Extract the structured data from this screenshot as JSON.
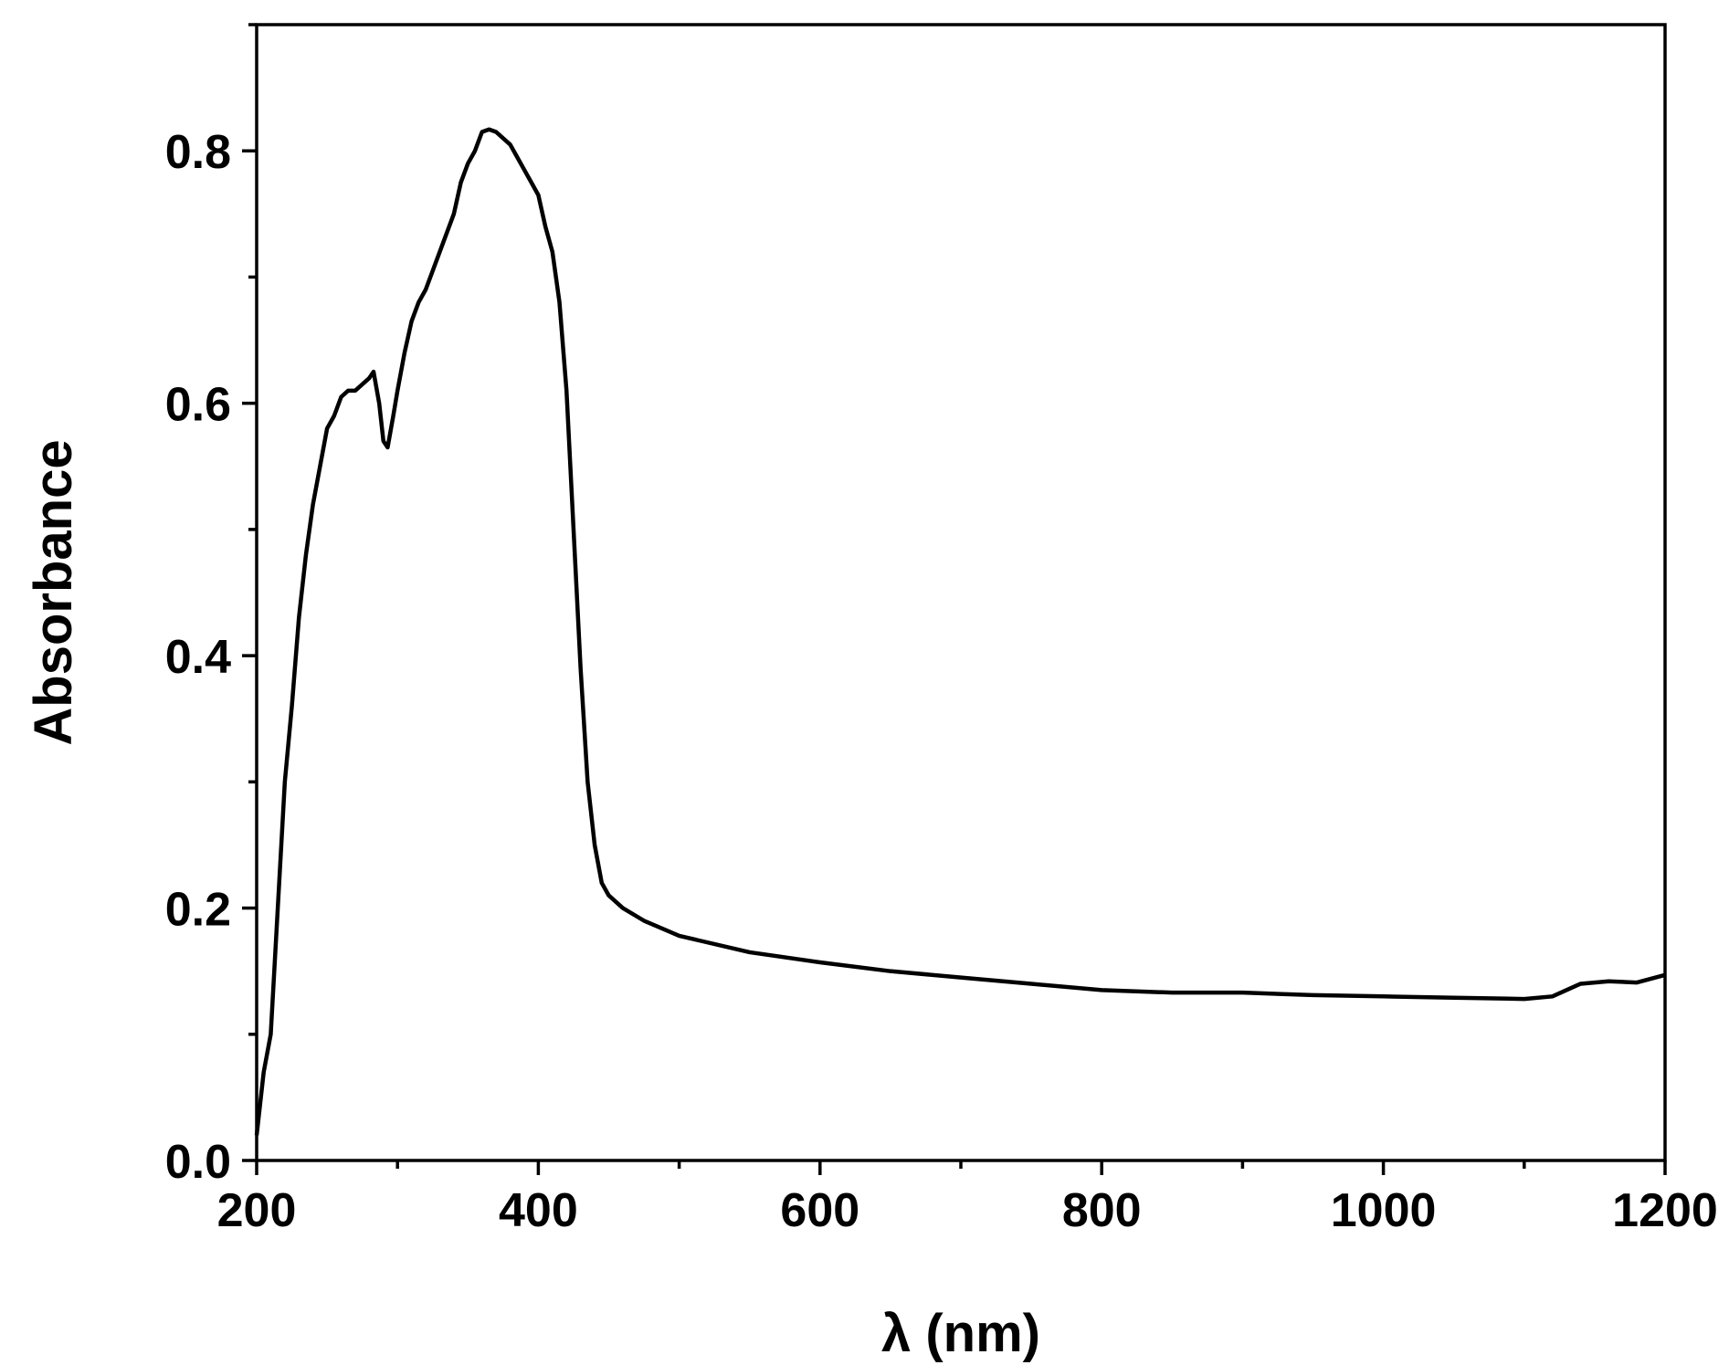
{
  "chart_data": {
    "type": "line",
    "xlabel": "λ  (nm)",
    "ylabel": "Absorbance",
    "xlim": [
      200,
      1200
    ],
    "ylim": [
      0,
      0.9
    ],
    "xticks": [
      200,
      400,
      600,
      800,
      1000,
      1200
    ],
    "yticks": [
      {
        "value": 0,
        "label": "0.0"
      },
      0.2,
      0.4,
      0.6,
      0.8
    ],
    "grid": false,
    "series": [
      {
        "color": "#000000",
        "x": [
          200,
          205,
          210,
          215,
          220,
          225,
          230,
          235,
          240,
          245,
          250,
          255,
          260,
          265,
          270,
          275,
          280,
          283,
          287,
          290,
          293,
          297,
          300,
          305,
          310,
          315,
          320,
          325,
          330,
          335,
          340,
          345,
          350,
          355,
          360,
          365,
          370,
          375,
          380,
          385,
          390,
          395,
          400,
          405,
          410,
          415,
          420,
          425,
          430,
          435,
          440,
          445,
          450,
          460,
          475,
          500,
          550,
          600,
          650,
          700,
          750,
          800,
          850,
          900,
          950,
          1000,
          1050,
          1100,
          1120,
          1140,
          1160,
          1180,
          1200
        ],
        "values": [
          0.02,
          0.07,
          0.1,
          0.2,
          0.3,
          0.36,
          0.43,
          0.48,
          0.52,
          0.55,
          0.58,
          0.59,
          0.605,
          0.61,
          0.61,
          0.615,
          0.62,
          0.625,
          0.6,
          0.57,
          0.565,
          0.59,
          0.61,
          0.64,
          0.665,
          0.68,
          0.69,
          0.705,
          0.72,
          0.735,
          0.75,
          0.775,
          0.79,
          0.8,
          0.815,
          0.817,
          0.815,
          0.81,
          0.805,
          0.795,
          0.785,
          0.775,
          0.765,
          0.74,
          0.72,
          0.68,
          0.61,
          0.5,
          0.39,
          0.3,
          0.25,
          0.22,
          0.21,
          0.2,
          0.19,
          0.178,
          0.165,
          0.157,
          0.15,
          0.145,
          0.14,
          0.135,
          0.133,
          0.133,
          0.131,
          0.13,
          0.129,
          0.128,
          0.13,
          0.14,
          0.142,
          0.141,
          0.147
        ]
      }
    ]
  }
}
